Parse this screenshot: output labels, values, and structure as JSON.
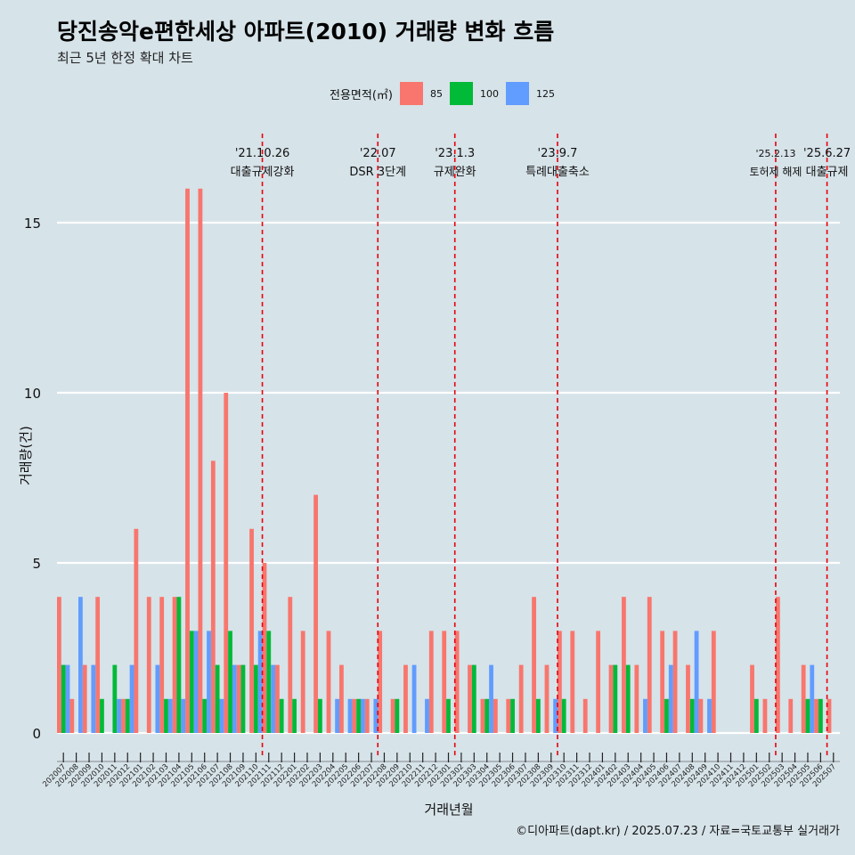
{
  "title": "당진송악e편한세상 아파트(2010) 거래량 변화 흐름",
  "subtitle": "최근 5년 한정 확대 차트",
  "legend": {
    "title": "전용면적(㎡)",
    "items": [
      {
        "label": "85",
        "color": "#f8766d"
      },
      {
        "label": "100",
        "color": "#00ba38"
      },
      {
        "label": "125",
        "color": "#619cff"
      }
    ]
  },
  "caption": "©디아파트(dapt.kr) / 2025.07.23 / 자료=국토교통부 실거래가",
  "chart_data": {
    "type": "bar",
    "xlabel": "거래년월",
    "ylabel": "거래량(건)",
    "ylim": [
      0,
      17
    ],
    "yticks": [
      0,
      5,
      10,
      15
    ],
    "grid": true,
    "legend_position": "top",
    "categories": [
      "202007",
      "202008",
      "202009",
      "202010",
      "202011",
      "202012",
      "202101",
      "202102",
      "202103",
      "202104",
      "202105",
      "202106",
      "202107",
      "202108",
      "202109",
      "202110",
      "202111",
      "202112",
      "202201",
      "202202",
      "202203",
      "202204",
      "202205",
      "202206",
      "202207",
      "202208",
      "202209",
      "202210",
      "202211",
      "202212",
      "202301",
      "202302",
      "202303",
      "202304",
      "202305",
      "202306",
      "202307",
      "202308",
      "202309",
      "202310",
      "202311",
      "202312",
      "202401",
      "202402",
      "202403",
      "202404",
      "202405",
      "202406",
      "202407",
      "202408",
      "202409",
      "202410",
      "202411",
      "202412",
      "202501",
      "202502",
      "202503",
      "202504",
      "202505",
      "202506",
      "202507"
    ],
    "series": [
      {
        "name": "85",
        "color": "#f8766d",
        "values": [
          4,
          1,
          2,
          4,
          0,
          1,
          6,
          4,
          4,
          4,
          16,
          16,
          8,
          10,
          2,
          6,
          5,
          2,
          4,
          3,
          7,
          3,
          2,
          1,
          1,
          3,
          1,
          2,
          0,
          3,
          3,
          3,
          2,
          1,
          1,
          1,
          2,
          4,
          2,
          3,
          3,
          1,
          3,
          2,
          4,
          2,
          4,
          3,
          3,
          2,
          1,
          3,
          0,
          0,
          2,
          1,
          4,
          1,
          2,
          1,
          1
        ]
      },
      {
        "name": "100",
        "color": "#00ba38",
        "values": [
          2,
          0,
          0,
          1,
          2,
          1,
          0,
          0,
          1,
          4,
          3,
          1,
          2,
          3,
          2,
          2,
          3,
          1,
          1,
          0,
          1,
          0,
          0,
          1,
          0,
          0,
          1,
          0,
          0,
          0,
          1,
          0,
          2,
          1,
          0,
          1,
          0,
          1,
          0,
          1,
          0,
          0,
          0,
          2,
          2,
          0,
          0,
          1,
          0,
          1,
          0,
          0,
          0,
          0,
          1,
          0,
          0,
          0,
          1,
          1,
          0
        ]
      },
      {
        "name": "125",
        "color": "#619cff",
        "values": [
          2,
          4,
          2,
          0,
          1,
          2,
          0,
          2,
          1,
          1,
          3,
          3,
          1,
          2,
          0,
          3,
          2,
          0,
          0,
          0,
          0,
          1,
          1,
          1,
          1,
          0,
          0,
          2,
          1,
          0,
          0,
          0,
          0,
          2,
          0,
          0,
          0,
          0,
          1,
          0,
          0,
          0,
          0,
          0,
          0,
          1,
          0,
          2,
          0,
          3,
          1,
          0,
          0,
          0,
          0,
          0,
          0,
          0,
          2,
          0,
          0
        ]
      }
    ],
    "events": [
      {
        "after": "202110",
        "date": "'21.10.26",
        "label": "대출규제강화"
      },
      {
        "after": "202207",
        "date": "'22.07",
        "label": "DSR 3단계"
      },
      {
        "after": "202301",
        "date": "'23.1.3",
        "label": "규제완화"
      },
      {
        "after": "202309",
        "date": "'23.9.7",
        "label": "특례대출축소"
      },
      {
        "after": "202502",
        "date": "'25.2.13",
        "label": "토허제 해제"
      },
      {
        "after": "202506",
        "date": "'25.6.27",
        "label": "대출규제"
      }
    ],
    "event_color": "#e8000b"
  }
}
